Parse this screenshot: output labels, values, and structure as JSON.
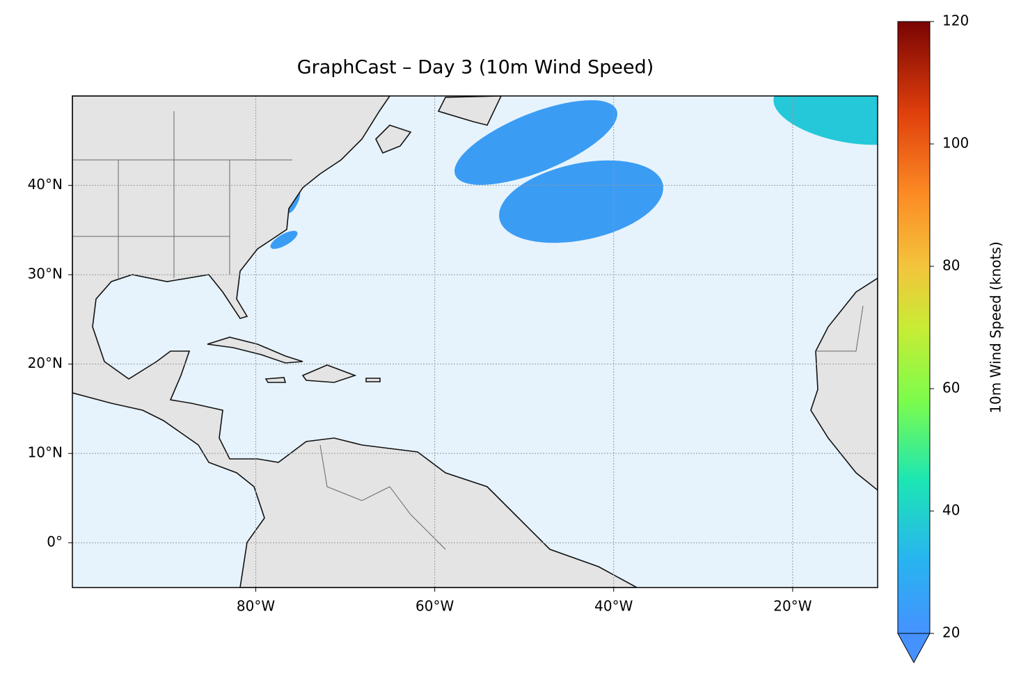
{
  "chart_data": {
    "type": "map",
    "title": "GraphCast – Day 3 (10m Wind Speed)",
    "xlim": [
      -100.5,
      -10.5
    ],
    "ylim": [
      -5,
      50
    ],
    "xticks": [
      {
        "value": -80,
        "label": "80°W"
      },
      {
        "value": -60,
        "label": "60°W"
      },
      {
        "value": -40,
        "label": "40°W"
      },
      {
        "value": -20,
        "label": "20°W"
      }
    ],
    "yticks": [
      {
        "value": 0,
        "label": "0°"
      },
      {
        "value": 10,
        "label": "10°N"
      },
      {
        "value": 20,
        "label": "20°N"
      },
      {
        "value": 30,
        "label": "30°N"
      },
      {
        "value": 40,
        "label": "40°N"
      }
    ],
    "grid": true,
    "colorbar": {
      "label": "10m Wind Speed (knots)",
      "lim": [
        20,
        120
      ],
      "ticks": [
        20,
        40,
        60,
        80,
        100,
        120
      ],
      "extend": "min"
    }
  }
}
